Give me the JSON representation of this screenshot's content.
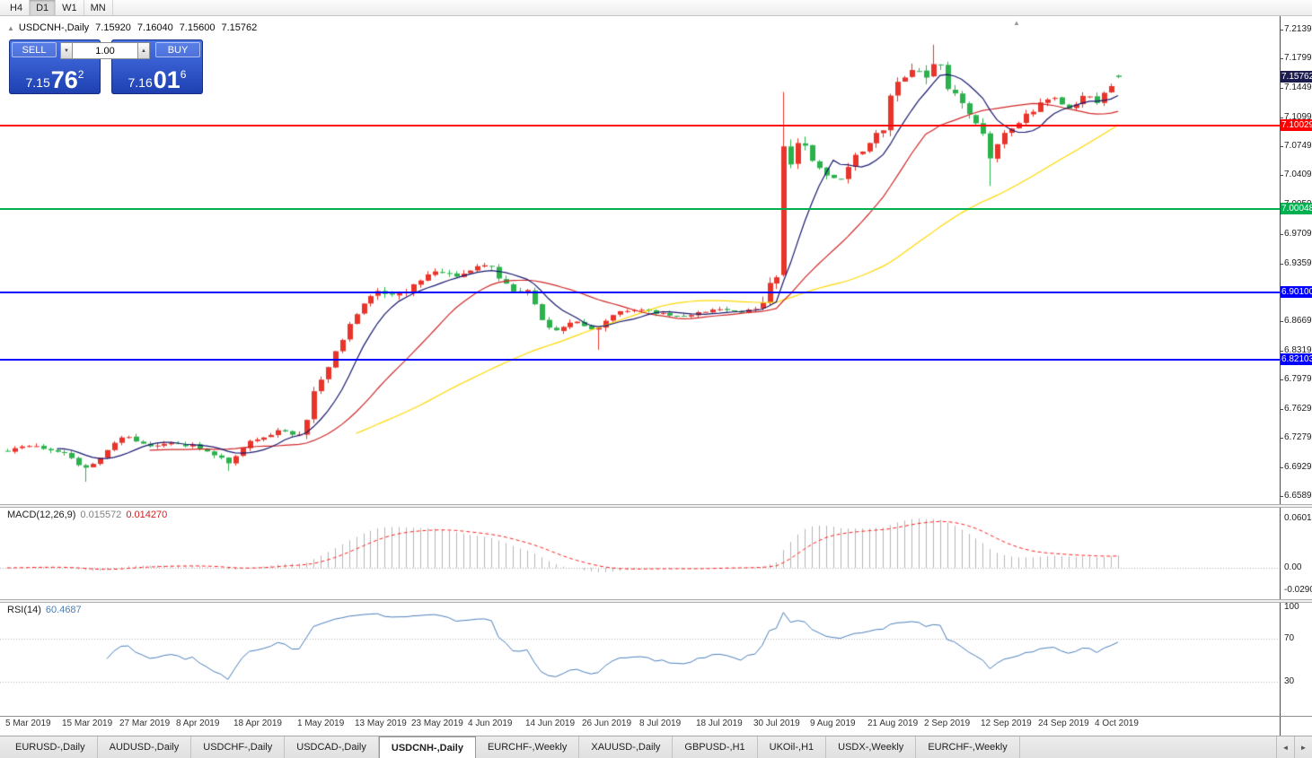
{
  "colors": {
    "up_candle": "#e8342a",
    "down_candle": "#2bb24c",
    "ma_fast": "#191970",
    "ma_mid": "#d02828",
    "ma_slow": "#ffd700",
    "macd_hist": "#b4b4b4",
    "macd_signal": "#ff2020",
    "rsi_line": "#4a7ebb",
    "level_red": "#ff0000",
    "level_green": "#00b050",
    "level_blue": "#0000ff",
    "current_price_bg": "#1c1c4e"
  },
  "icons": {
    "collapse": "▲",
    "volume_down": "▼",
    "volume_up": "▲",
    "scroll_left": "◄",
    "scroll_right": "►",
    "shift_marker": "▲"
  },
  "toolbar": {
    "timeframes": [
      {
        "label": "H4",
        "active": false
      },
      {
        "label": "D1",
        "active": true
      },
      {
        "label": "W1",
        "active": false
      },
      {
        "label": "MN",
        "active": false
      }
    ]
  },
  "chart_header": {
    "title": "USDCNH-,Daily",
    "open": "7.15920",
    "high": "7.16040",
    "low": "7.15600",
    "close": "7.15762"
  },
  "trade_panel": {
    "sell_label": "SELL",
    "buy_label": "BUY",
    "volume": "1.00",
    "sell_price_prefix": "7.15",
    "sell_price_big": "76",
    "sell_price_sup": "2",
    "buy_price_prefix": "7.16",
    "buy_price_big": "01",
    "buy_price_sup": "6"
  },
  "price_axis": {
    "ticks": [
      {
        "text": "7.21390",
        "price": 7.2139
      },
      {
        "text": "7.17990",
        "price": 7.1799
      },
      {
        "text": "7.14490",
        "price": 7.1449
      },
      {
        "text": "7.10990",
        "price": 7.1099
      },
      {
        "text": "7.07490",
        "price": 7.0749
      },
      {
        "text": "7.04090",
        "price": 7.0409
      },
      {
        "text": "7.00590",
        "price": 7.0059
      },
      {
        "text": "6.97090",
        "price": 6.9709
      },
      {
        "text": "6.93590",
        "price": 6.9359
      },
      {
        "text": "6.90190",
        "price": 6.9019
      },
      {
        "text": "6.86690",
        "price": 6.8669
      },
      {
        "text": "6.83190",
        "price": 6.8319
      },
      {
        "text": "6.79790",
        "price": 6.7979
      },
      {
        "text": "6.76290",
        "price": 6.7629
      },
      {
        "text": "6.72790",
        "price": 6.7279
      },
      {
        "text": "6.69290",
        "price": 6.6929
      },
      {
        "text": "6.65890",
        "price": 6.6589
      }
    ],
    "current": {
      "text": "7.15762",
      "price": 7.15762
    },
    "levels": [
      {
        "text": "7.10029",
        "price": 7.10029,
        "color_key": "level_red"
      },
      {
        "text": "7.00048",
        "price": 7.00048,
        "color_key": "level_green"
      },
      {
        "text": "6.90100",
        "price": 6.901,
        "color_key": "level_blue"
      },
      {
        "text": "6.82103",
        "price": 6.82103,
        "color_key": "level_blue"
      }
    ]
  },
  "macd_panel": {
    "name": "MACD(12,26,9)",
    "main_value": "0.015572",
    "signal_value": "0.014270",
    "axis": [
      "0.060146",
      "0.00",
      "-0.029064"
    ]
  },
  "rsi_panel": {
    "name": "RSI(14)",
    "value": "60.4687",
    "axis": [
      "100",
      "70",
      "30"
    ]
  },
  "time_axis": {
    "labels": [
      {
        "text": "5 Mar 2019",
        "bar": 0
      },
      {
        "text": "15 Mar 2019",
        "bar": 8
      },
      {
        "text": "27 Mar 2019",
        "bar": 16
      },
      {
        "text": "8 Apr 2019",
        "bar": 24
      },
      {
        "text": "18 Apr 2019",
        "bar": 32
      },
      {
        "text": "1 May 2019",
        "bar": 41
      },
      {
        "text": "13 May 2019",
        "bar": 49
      },
      {
        "text": "23 May 2019",
        "bar": 57
      },
      {
        "text": "4 Jun 2019",
        "bar": 65
      },
      {
        "text": "14 Jun 2019",
        "bar": 73
      },
      {
        "text": "26 Jun 2019",
        "bar": 81
      },
      {
        "text": "8 Jul 2019",
        "bar": 89
      },
      {
        "text": "18 Jul 2019",
        "bar": 97
      },
      {
        "text": "30 Jul 2019",
        "bar": 105
      },
      {
        "text": "9 Aug 2019",
        "bar": 113
      },
      {
        "text": "21 Aug 2019",
        "bar": 121
      },
      {
        "text": "2 Sep 2019",
        "bar": 129
      },
      {
        "text": "12 Sep 2019",
        "bar": 137
      },
      {
        "text": "24 Sep 2019",
        "bar": 145
      },
      {
        "text": "4 Oct 2019",
        "bar": 153
      }
    ]
  },
  "bottom_tabs": {
    "tabs": [
      {
        "label": "EURUSD-,Daily",
        "active": false
      },
      {
        "label": "AUDUSD-,Daily",
        "active": false
      },
      {
        "label": "USDCHF-,Daily",
        "active": false
      },
      {
        "label": "USDCAD-,Daily",
        "active": false
      },
      {
        "label": "USDCNH-,Daily",
        "active": true
      },
      {
        "label": "EURCHF-,Weekly",
        "active": false
      },
      {
        "label": "XAUUSD-,Daily",
        "active": false
      },
      {
        "label": "GBPUSD-,H1",
        "active": false
      },
      {
        "label": "UKOil-,H1",
        "active": false
      },
      {
        "label": "USDX-,Weekly",
        "active": false
      },
      {
        "label": "EURCHF-,Weekly",
        "active": false
      }
    ]
  },
  "chart_data": {
    "type": "candlestick",
    "symbol": "USDCNH",
    "timeframe": "Daily",
    "bars": 157,
    "color_convention": "red = bullish, green = bearish",
    "last_bar_ohlc": {
      "open": 7.1592,
      "high": 7.1604,
      "low": 7.156,
      "close": 7.15762
    },
    "price_axis_range": {
      "top": 7.2225,
      "bottom": 6.646
    },
    "horizontal_levels": [
      7.10029,
      7.00048,
      6.901,
      6.82103
    ],
    "moving_averages": [
      {
        "period": 8,
        "color_key": "ma_fast"
      },
      {
        "period": 21,
        "color_key": "ma_mid"
      },
      {
        "period": 50,
        "color_key": "ma_slow"
      }
    ],
    "indicators": {
      "macd": {
        "fast": 12,
        "slow": 26,
        "signal": 9,
        "current_main": 0.015572,
        "current_signal": 0.01427
      },
      "rsi": {
        "period": 14,
        "current": 60.4687
      }
    },
    "anchors": [
      [
        0,
        6.713
      ],
      [
        4,
        6.718
      ],
      [
        8,
        6.71
      ],
      [
        11,
        6.691
      ],
      [
        13,
        6.705
      ],
      [
        16,
        6.73
      ],
      [
        19,
        6.72
      ],
      [
        24,
        6.722
      ],
      [
        28,
        6.714
      ],
      [
        31,
        6.699
      ],
      [
        34,
        6.726
      ],
      [
        38,
        6.736
      ],
      [
        41,
        6.733
      ],
      [
        42,
        6.748
      ],
      [
        43,
        6.78
      ],
      [
        45,
        6.815
      ],
      [
        47,
        6.845
      ],
      [
        49,
        6.878
      ],
      [
        52,
        6.902
      ],
      [
        55,
        6.898
      ],
      [
        57,
        6.912
      ],
      [
        60,
        6.928
      ],
      [
        63,
        6.92
      ],
      [
        66,
        6.934
      ],
      [
        68,
        6.93
      ],
      [
        71,
        6.9
      ],
      [
        73,
        6.906
      ],
      [
        75,
        6.87
      ],
      [
        77,
        6.855
      ],
      [
        80,
        6.868
      ],
      [
        83,
        6.856
      ],
      [
        85,
        6.876
      ],
      [
        88,
        6.88
      ],
      [
        92,
        6.876
      ],
      [
        95,
        6.872
      ],
      [
        97,
        6.877
      ],
      [
        100,
        6.882
      ],
      [
        103,
        6.878
      ],
      [
        106,
        6.886
      ],
      [
        107,
        6.91
      ],
      [
        108,
        6.925
      ],
      [
        109,
        7.06
      ],
      [
        110,
        7.055
      ],
      [
        111,
        7.085
      ],
      [
        112,
        7.07
      ],
      [
        113,
        7.058
      ],
      [
        115,
        7.041
      ],
      [
        117,
        7.032
      ],
      [
        119,
        7.062
      ],
      [
        121,
        7.078
      ],
      [
        123,
        7.098
      ],
      [
        124,
        7.13
      ],
      [
        125,
        7.152
      ],
      [
        127,
        7.162
      ],
      [
        129,
        7.158
      ],
      [
        130,
        7.172
      ],
      [
        131,
        7.168
      ],
      [
        132,
        7.148
      ],
      [
        134,
        7.122
      ],
      [
        136,
        7.105
      ],
      [
        137,
        7.095
      ],
      [
        138,
        7.062
      ],
      [
        139,
        7.082
      ],
      [
        141,
        7.096
      ],
      [
        143,
        7.112
      ],
      [
        145,
        7.124
      ],
      [
        147,
        7.136
      ],
      [
        149,
        7.118
      ],
      [
        151,
        7.136
      ],
      [
        153,
        7.13
      ],
      [
        155,
        7.15
      ],
      [
        156,
        7.158
      ]
    ],
    "volatility": [
      [
        0,
        0.005
      ],
      [
        41,
        0.008
      ],
      [
        61,
        0.006
      ],
      [
        71,
        0.007
      ],
      [
        85,
        0.0042
      ],
      [
        106,
        0.012
      ],
      [
        114,
        0.008
      ],
      [
        123,
        0.012
      ],
      [
        131,
        0.01
      ],
      [
        140,
        0.007
      ]
    ],
    "special_bars": {
      "11": {
        "l": 6.676
      },
      "31": {
        "l": 6.689
      },
      "83": {
        "l": 6.833
      },
      "109": {
        "o": 6.922,
        "c": 7.075,
        "h": 7.1397,
        "l": 6.92
      },
      "130": {
        "h": 7.196
      },
      "138": {
        "l": 7.028
      },
      "156": {
        "o": 7.1592,
        "h": 7.1604,
        "l": 7.156,
        "c": 7.15762
      }
    }
  }
}
